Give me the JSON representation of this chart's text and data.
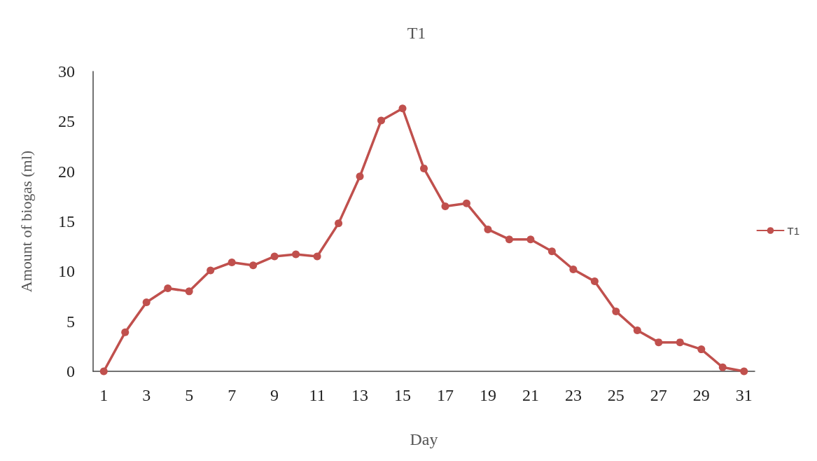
{
  "chart_data": {
    "type": "line",
    "title": "T1",
    "xlabel": "Day",
    "ylabel": "Amount of biogas (ml)",
    "x": [
      1,
      2,
      3,
      4,
      5,
      6,
      7,
      8,
      9,
      10,
      11,
      12,
      13,
      14,
      15,
      16,
      17,
      18,
      19,
      20,
      21,
      22,
      23,
      24,
      25,
      26,
      27,
      28,
      29,
      30,
      31
    ],
    "series": [
      {
        "name": "T1",
        "color": "#c0504d",
        "values": [
          0,
          3.9,
          6.9,
          8.3,
          8.0,
          10.1,
          10.9,
          10.6,
          11.5,
          11.7,
          11.5,
          14.8,
          19.5,
          25.1,
          26.3,
          20.3,
          16.5,
          16.8,
          14.2,
          13.2,
          13.2,
          12.0,
          10.2,
          9.0,
          6.0,
          4.1,
          2.9,
          2.9,
          2.2,
          0.4,
          0
        ]
      }
    ],
    "xlim": [
      0.5,
      31.5
    ],
    "xticks": [
      1,
      3,
      5,
      7,
      9,
      11,
      13,
      15,
      17,
      19,
      21,
      23,
      25,
      27,
      29,
      31
    ],
    "ylim": [
      0,
      30
    ],
    "yticks": [
      0,
      5,
      10,
      15,
      20,
      25,
      30
    ],
    "grid": false,
    "legend": "right",
    "marker": "circle",
    "line_style": "solid"
  }
}
